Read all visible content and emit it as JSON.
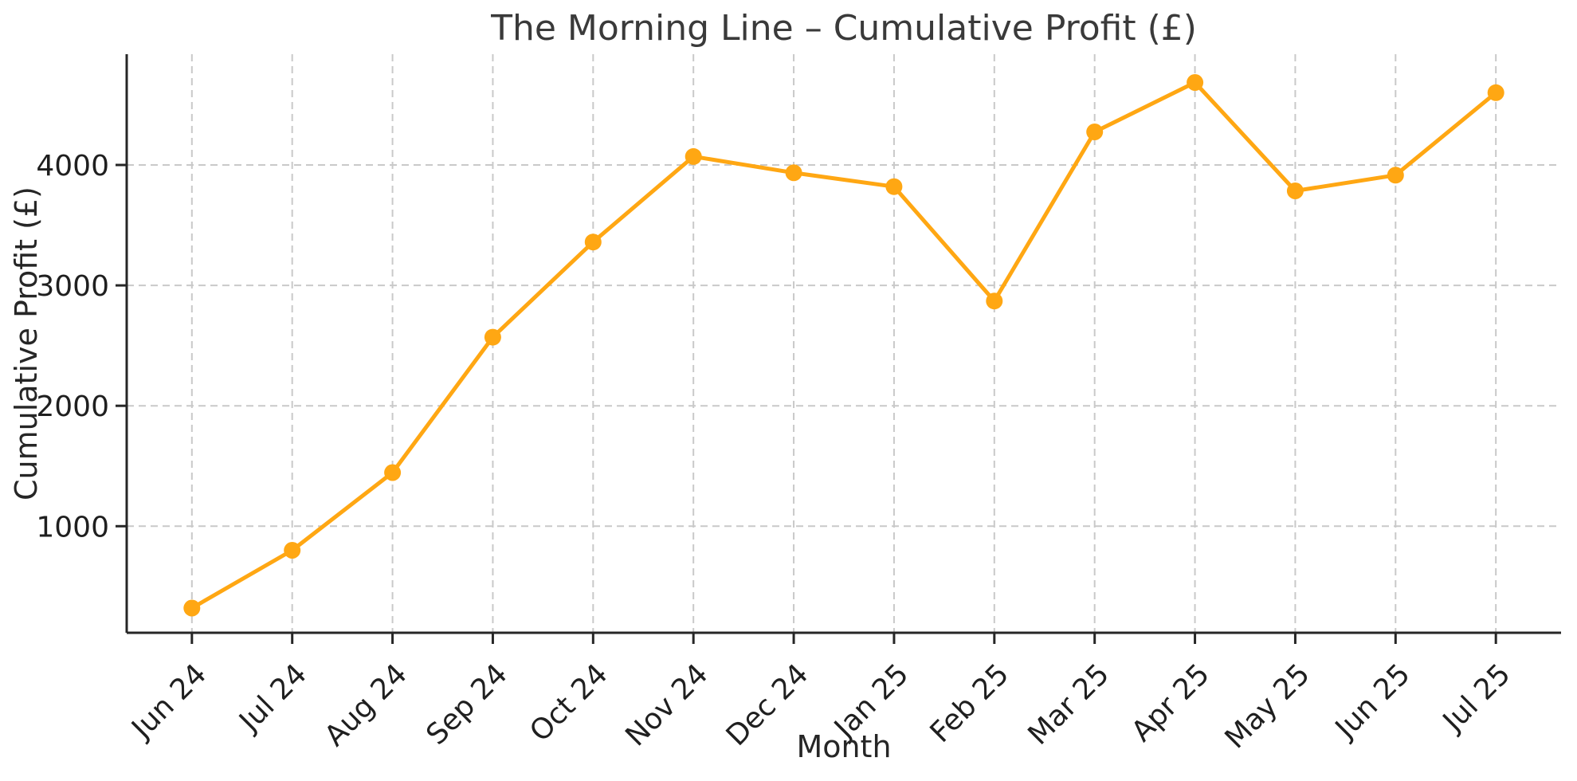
{
  "chart_data": {
    "type": "line",
    "title": "The Morning Line – Cumulative Profit (£)",
    "xlabel": "Month",
    "ylabel": "Cumulative Profit (£)",
    "categories": [
      "Jun 24",
      "Jul 24",
      "Aug 24",
      "Sep 24",
      "Oct 24",
      "Nov 24",
      "Dec 24",
      "Jan 25",
      "Feb 25",
      "Mar 25",
      "Apr 25",
      "May 25",
      "Jun 25",
      "Jul 25"
    ],
    "series": [
      {
        "name": "Cumulative Profit (£)",
        "values": [
          320,
          800,
          1445,
          2570,
          3360,
          4070,
          3935,
          3820,
          2870,
          4275,
          4685,
          3785,
          3915,
          4600
        ]
      }
    ],
    "y_ticks": [
      1000,
      2000,
      3000,
      4000
    ],
    "ylim": [
      115,
      4920
    ],
    "grid": "dashed light-gray, vertical line at each month tick and horizontal line at each y tick",
    "legend": "none",
    "x_tick_rotation_deg": 45,
    "style": {
      "line_color": "#FFA713",
      "marker": "circle",
      "marker_color": "#FFA713",
      "grid_color": "#C9C9C9",
      "spine_color": "#262626",
      "tick_label_color": "#1F1F1F",
      "title_color": "#3A3A3A",
      "background": "#FFFFFF"
    }
  }
}
